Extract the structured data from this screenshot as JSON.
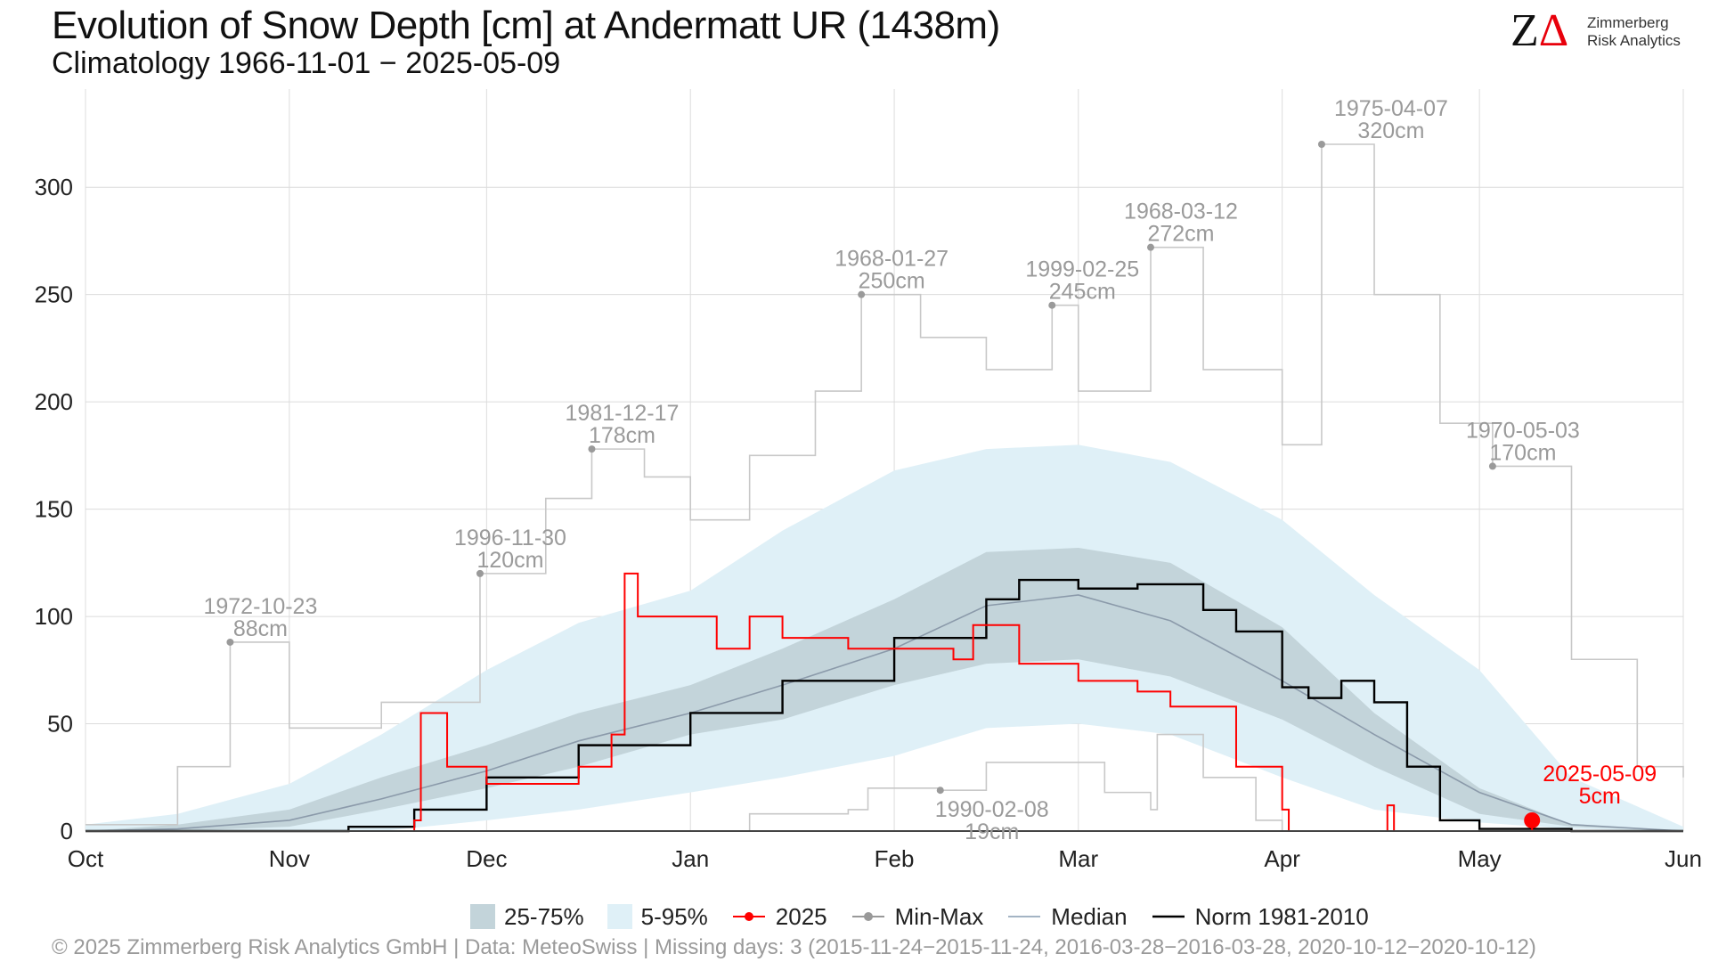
{
  "title": "Evolution of Snow Depth [cm] at Andermatt  UR (1438m)",
  "subtitle": "Climatology 1966-11-01 − 2025-05-09",
  "logo": {
    "mark_z": "Z",
    "mark_delta": "Δ",
    "line1": "Zimmerberg",
    "line2": "Risk Analytics"
  },
  "footer": "©  2025 Zimmerberg Risk Analytics GmbH | Data: MeteoSwiss | Missing days: 3 (2015-11-24−2015-11-24, 2016-03-28−2016-03-28, 2020-10-12−2020-10-12)",
  "legend": [
    {
      "label": "25-75%",
      "kind": "band",
      "color": "#c3d4da"
    },
    {
      "label": "5-95%",
      "kind": "band",
      "color": "#dff0f7"
    },
    {
      "label": "2025",
      "kind": "line-dot",
      "color": "#ff0000"
    },
    {
      "label": "Min-Max",
      "kind": "line-dot",
      "color": "#999999"
    },
    {
      "label": "Median",
      "kind": "line",
      "color": "#a4b4c4"
    },
    {
      "label": "Norm 1981-2010",
      "kind": "line",
      "color": "#000000"
    }
  ],
  "colors": {
    "q25_75": "#c3d4da",
    "q05_95": "#dff0f7",
    "y2025": "#ff0000",
    "minmax": "#c8c8c8",
    "annot": "#9a9a9a",
    "median": "#8b9aaa",
    "norm": "#000000",
    "grid": "#dcdcdc"
  },
  "chart_data": {
    "type": "area",
    "x_axis": {
      "type": "date",
      "start": "2024-10-01",
      "end": "2025-06-01",
      "tick_labels": [
        "Oct",
        "Nov",
        "Dec",
        "Jan",
        "Feb",
        "Mar",
        "Apr",
        "May",
        "Jun"
      ],
      "tick_dates": [
        "2024-10-01",
        "2024-11-01",
        "2024-12-01",
        "2025-01-01",
        "2025-02-01",
        "2025-03-01",
        "2025-04-01",
        "2025-05-01",
        "2025-06-01"
      ]
    },
    "y_axis": {
      "ylim": [
        0,
        320
      ],
      "ticks": [
        0,
        50,
        100,
        150,
        200,
        250,
        300
      ]
    },
    "grid": true,
    "band_5_95": {
      "x": [
        "2024-10-01",
        "2024-10-15",
        "2024-11-01",
        "2024-11-15",
        "2024-12-01",
        "2024-12-15",
        "2025-01-01",
        "2025-01-15",
        "2025-02-01",
        "2025-02-15",
        "2025-03-01",
        "2025-03-15",
        "2025-04-01",
        "2025-04-15",
        "2025-05-01",
        "2025-05-15",
        "2025-06-01"
      ],
      "low": [
        0,
        0,
        0,
        0,
        5,
        10,
        18,
        25,
        35,
        48,
        50,
        45,
        25,
        10,
        4,
        1,
        0
      ],
      "high": [
        3,
        8,
        22,
        45,
        75,
        97,
        112,
        140,
        168,
        178,
        180,
        172,
        145,
        110,
        75,
        25,
        2
      ]
    },
    "band_25_75": {
      "x": [
        "2024-10-01",
        "2024-10-15",
        "2024-11-01",
        "2024-11-15",
        "2024-12-01",
        "2024-12-15",
        "2025-01-01",
        "2025-01-15",
        "2025-02-01",
        "2025-02-15",
        "2025-03-01",
        "2025-03-15",
        "2025-04-01",
        "2025-04-15",
        "2025-05-01",
        "2025-05-15",
        "2025-06-01"
      ],
      "low": [
        0,
        0,
        2,
        10,
        20,
        30,
        45,
        52,
        68,
        78,
        80,
        72,
        52,
        30,
        8,
        2,
        0
      ],
      "high": [
        0,
        3,
        10,
        25,
        40,
        55,
        68,
        85,
        108,
        130,
        132,
        125,
        95,
        55,
        20,
        3,
        0
      ]
    },
    "median": {
      "x": [
        "2024-10-01",
        "2024-10-15",
        "2024-11-01",
        "2024-11-15",
        "2024-12-01",
        "2024-12-15",
        "2025-01-01",
        "2025-01-15",
        "2025-02-01",
        "2025-02-15",
        "2025-03-01",
        "2025-03-15",
        "2025-04-01",
        "2025-04-15",
        "2025-05-01",
        "2025-05-15",
        "2025-06-01"
      ],
      "y": [
        0,
        1,
        5,
        15,
        28,
        42,
        55,
        68,
        85,
        105,
        110,
        98,
        70,
        45,
        18,
        3,
        0
      ]
    },
    "norm_1981_2010": {
      "x": [
        "2024-10-01",
        "2024-11-10",
        "2024-11-20",
        "2024-12-01",
        "2024-12-15",
        "2025-01-01",
        "2025-01-15",
        "2025-02-01",
        "2025-02-15",
        "2025-02-20",
        "2025-03-01",
        "2025-03-10",
        "2025-03-20",
        "2025-03-25",
        "2025-04-01",
        "2025-04-05",
        "2025-04-10",
        "2025-04-15",
        "2025-04-20",
        "2025-04-25",
        "2025-05-01",
        "2025-05-15",
        "2025-06-01"
      ],
      "y": [
        0,
        2,
        10,
        25,
        40,
        55,
        70,
        90,
        108,
        117,
        113,
        115,
        103,
        93,
        67,
        62,
        70,
        60,
        30,
        5,
        1,
        0,
        0
      ]
    },
    "year_2025": {
      "x": [
        "2024-10-01",
        "2024-11-10",
        "2024-11-20",
        "2024-11-21",
        "2024-11-25",
        "2024-12-01",
        "2024-12-15",
        "2024-12-20",
        "2024-12-22",
        "2024-12-24",
        "2025-01-05",
        "2025-01-10",
        "2025-01-15",
        "2025-01-25",
        "2025-02-01",
        "2025-02-10",
        "2025-02-13",
        "2025-02-20",
        "2025-03-01",
        "2025-03-10",
        "2025-03-15",
        "2025-03-25",
        "2025-04-01",
        "2025-04-02",
        "2025-04-16",
        "2025-04-17",
        "2025-04-18",
        "2025-05-09"
      ],
      "y": [
        0,
        0,
        5,
        55,
        30,
        22,
        30,
        45,
        120,
        100,
        85,
        100,
        90,
        85,
        85,
        80,
        96,
        78,
        70,
        65,
        58,
        30,
        10,
        0,
        0,
        12,
        0,
        5
      ]
    },
    "max_series": {
      "x": [
        "2024-10-01",
        "2024-10-15",
        "2024-10-23",
        "2024-11-01",
        "2024-11-15",
        "2024-11-30",
        "2024-12-10",
        "2024-12-17",
        "2024-12-25",
        "2025-01-01",
        "2025-01-10",
        "2025-01-20",
        "2025-01-27",
        "2025-02-05",
        "2025-02-15",
        "2025-02-25",
        "2025-03-01",
        "2025-03-12",
        "2025-03-20",
        "2025-04-01",
        "2025-04-07",
        "2025-04-15",
        "2025-04-25",
        "2025-05-03",
        "2025-05-15",
        "2025-05-25",
        "2025-06-01"
      ],
      "y": [
        3,
        30,
        88,
        48,
        60,
        120,
        155,
        178,
        165,
        145,
        175,
        205,
        250,
        230,
        215,
        245,
        205,
        272,
        215,
        180,
        320,
        250,
        190,
        170,
        80,
        30,
        25
      ]
    },
    "min_series": {
      "x": [
        "2024-10-01",
        "2025-01-08",
        "2025-01-10",
        "2025-01-25",
        "2025-01-28",
        "2025-02-08",
        "2025-02-15",
        "2025-03-05",
        "2025-03-12",
        "2025-03-13",
        "2025-03-20",
        "2025-03-28",
        "2025-04-01"
      ],
      "y": [
        0,
        0,
        8,
        10,
        20,
        19,
        32,
        18,
        10,
        45,
        25,
        5,
        0
      ]
    },
    "annotations": [
      {
        "date": "2024-10-23",
        "label_date": "1972-10-23",
        "label_value": "88cm",
        "value": 88,
        "series": "max"
      },
      {
        "date": "2024-11-30",
        "label_date": "1996-11-30",
        "label_value": "120cm",
        "value": 120,
        "series": "max"
      },
      {
        "date": "2024-12-17",
        "label_date": "1981-12-17",
        "label_value": "178cm",
        "value": 178,
        "series": "max"
      },
      {
        "date": "2025-01-27",
        "label_date": "1968-01-27",
        "label_value": "250cm",
        "value": 250,
        "series": "max"
      },
      {
        "date": "2025-02-25",
        "label_date": "1999-02-25",
        "label_value": "245cm",
        "value": 245,
        "series": "max"
      },
      {
        "date": "2025-03-12",
        "label_date": "1968-03-12",
        "label_value": "272cm",
        "value": 272,
        "series": "max"
      },
      {
        "date": "2025-04-07",
        "label_date": "1975-04-07",
        "label_value": "320cm",
        "value": 320,
        "series": "max"
      },
      {
        "date": "2025-05-03",
        "label_date": "1970-05-03",
        "label_value": "170cm",
        "value": 170,
        "series": "max"
      },
      {
        "date": "2025-02-08",
        "label_date": "1990-02-08",
        "label_value": "19cm",
        "value": 19,
        "series": "min"
      },
      {
        "date": "2025-05-09",
        "label_date": "2025-05-09",
        "label_value": "5cm",
        "value": 5,
        "series": "current"
      }
    ]
  }
}
